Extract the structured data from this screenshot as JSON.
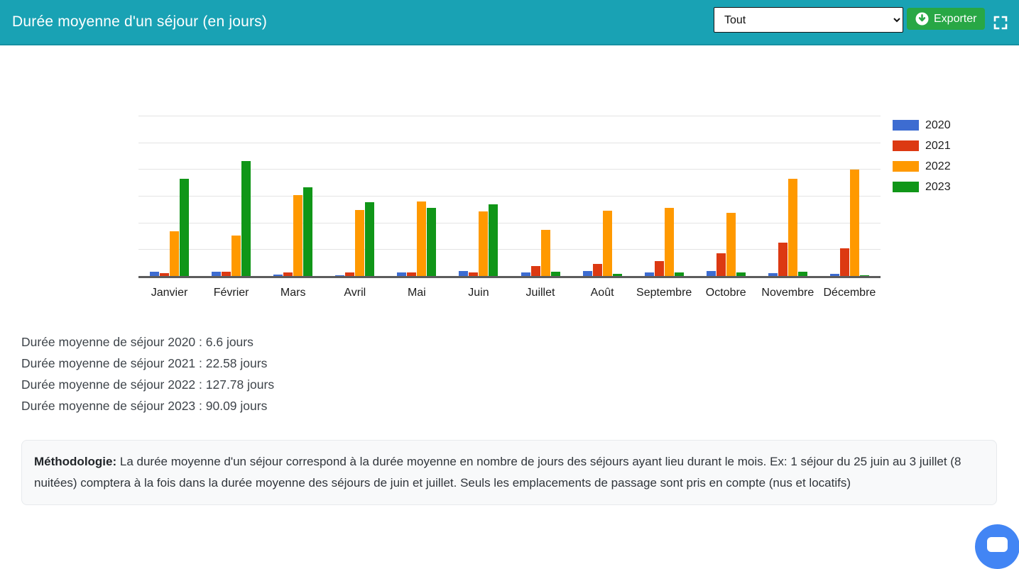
{
  "header": {
    "title": "Durée moyenne d'un séjour (en jours)",
    "filter_value": "Tout",
    "filter_options": [
      "Tout"
    ],
    "export_label": "Exporter"
  },
  "chart_data": {
    "type": "bar",
    "title": "",
    "xlabel": "",
    "ylabel": "",
    "categories": [
      "Janvier",
      "Février",
      "Mars",
      "Avril",
      "Mai",
      "Juin",
      "Juillet",
      "Août",
      "Septembre",
      "Octobre",
      "Novembre",
      "Décembre"
    ],
    "series": [
      {
        "name": "2020",
        "color": "#3d6cd1",
        "values": [
          8,
          8,
          3,
          2,
          7,
          9,
          7,
          9,
          7,
          9,
          5,
          4
        ]
      },
      {
        "name": "2021",
        "color": "#dc3912",
        "values": [
          5,
          8,
          7,
          7,
          7,
          7,
          18,
          23,
          28,
          43,
          63,
          52
        ]
      },
      {
        "name": "2022",
        "color": "#ff9900",
        "values": [
          84,
          76,
          151,
          123,
          139,
          121,
          86,
          122,
          127,
          118,
          182,
          199
        ]
      },
      {
        "name": "2023",
        "color": "#109618",
        "values": [
          182,
          215,
          166,
          138,
          127,
          134,
          8,
          4,
          7,
          7,
          8,
          2
        ]
      }
    ],
    "ylim": [
      0,
      300
    ],
    "gridline_step": 50,
    "grid": true,
    "y_axis_labels_visible": false,
    "legend_position": "right"
  },
  "summary": {
    "lines": [
      "Durée moyenne de séjour 2020 : 6.6 jours",
      "Durée moyenne de séjour 2021 : 22.58 jours",
      "Durée moyenne de séjour 2022 : 127.78 jours",
      "Durée moyenne de séjour 2023 : 90.09 jours"
    ]
  },
  "methodology": {
    "label": "Méthodologie:",
    "text": " La durée moyenne d'un séjour correspond à la durée moyenne en nombre de jours des séjours ayant lieu durant le mois. Ex: 1 séjour du 25 juin au 3 juillet (8 nuitées) comptera à la fois dans la durée moyenne des séjours de juin et juillet. Seuls les emplacements de passage sont pris en compte (nus et locatifs)"
  },
  "colors": {
    "header_bg": "#19a2b4",
    "export_button": "#28a745",
    "chat_bubble": "#4285f4"
  }
}
